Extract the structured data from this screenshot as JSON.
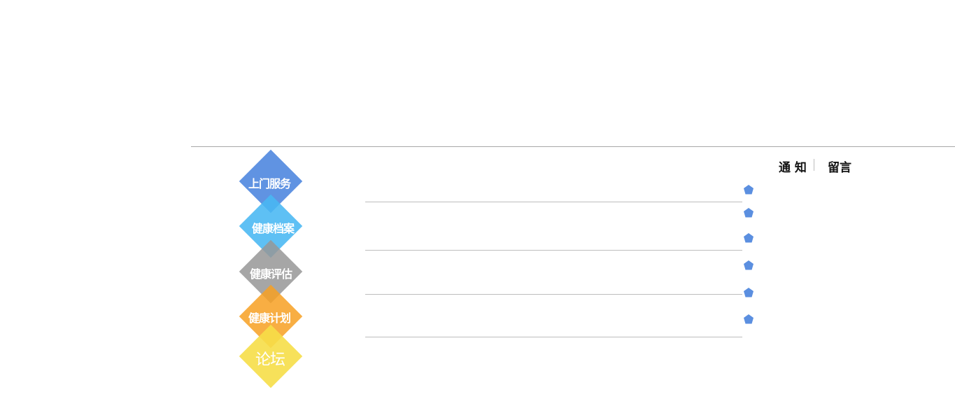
{
  "nav": {
    "items": [
      {
        "label": "上门服务",
        "color": "#5b8fe0"
      },
      {
        "label": "健康档案",
        "color": "#5bbcf1"
      },
      {
        "label": "健康评估",
        "color": "#a8a8a8"
      },
      {
        "label": "健康计划",
        "color": "#f8ab3c"
      },
      {
        "label": "论坛",
        "color": "#f7e05a"
      }
    ]
  },
  "tabs": {
    "notice": "通 知",
    "message": "留言"
  },
  "colors": {
    "bullet": "#5b8fe0",
    "divider": "#a8a8a8"
  }
}
